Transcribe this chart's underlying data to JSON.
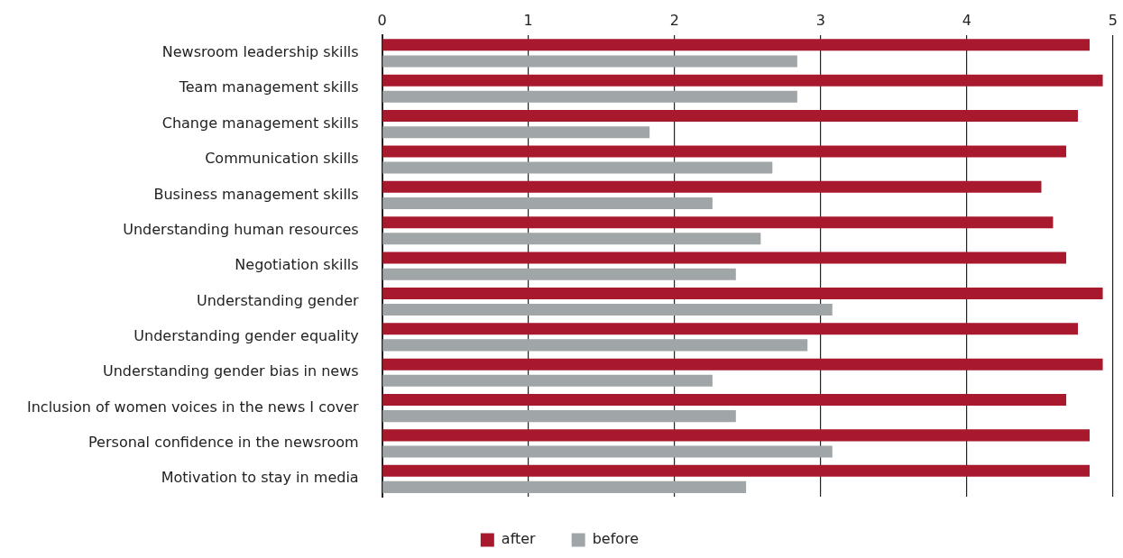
{
  "chart_data": {
    "type": "bar",
    "orientation": "horizontal",
    "categories": [
      "Newsroom leadership skills",
      "Team management skills",
      "Change management skills",
      "Communication skills",
      "Business management skills",
      "Understanding human resources",
      "Negotiation skills",
      "Understanding gender",
      "Understanding gender equality",
      "Understanding gender bias in news",
      "Inclusion of women voices in the news I cover",
      "Personal confidence in the newsroom",
      "Motivation to stay in media"
    ],
    "series": [
      {
        "name": "after",
        "color": "#a8192e",
        "values": [
          4.84,
          4.93,
          4.76,
          4.68,
          4.51,
          4.59,
          4.68,
          4.93,
          4.76,
          4.93,
          4.68,
          4.84,
          4.84
        ]
      },
      {
        "name": "before",
        "color": "#a0a5a8",
        "values": [
          2.84,
          2.84,
          1.83,
          2.67,
          2.26,
          2.59,
          2.42,
          3.08,
          2.91,
          2.26,
          2.42,
          3.08,
          2.49
        ]
      }
    ],
    "xlim": [
      0,
      5
    ],
    "xticks": [
      0,
      1,
      2,
      3,
      4,
      5
    ],
    "grid": "x",
    "legend": "bottom"
  }
}
